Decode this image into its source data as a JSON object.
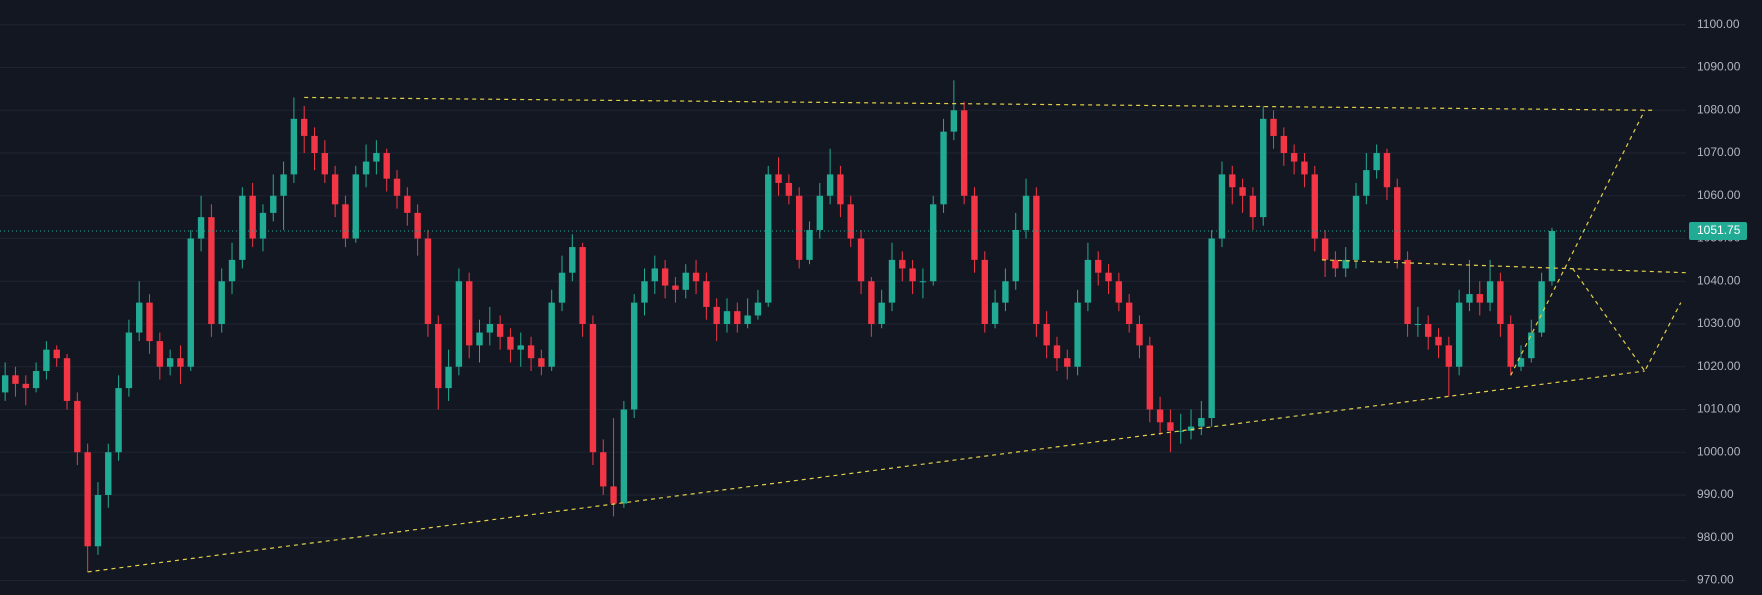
{
  "chart_data": {
    "type": "candlestick",
    "up_color": "#22ab94",
    "down_color": "#f23645",
    "grid": true,
    "grid_color": "#1f2431",
    "xlim": [
      -0.5,
      163
    ],
    "ylim": [
      966.6,
      1105.8
    ],
    "yticks": [
      {
        "value": 970,
        "label": "970.00"
      },
      {
        "value": 980,
        "label": "980.00"
      },
      {
        "value": 990,
        "label": "990.00"
      },
      {
        "value": 1000,
        "label": "1000.00"
      },
      {
        "value": 1010,
        "label": "1010.00"
      },
      {
        "value": 1020,
        "label": "1020.00"
      },
      {
        "value": 1030,
        "label": "1030.00"
      },
      {
        "value": 1040,
        "label": "1040.00"
      },
      {
        "value": 1050,
        "label": "1050.00"
      },
      {
        "value": 1060,
        "label": "1060.00"
      },
      {
        "value": 1070,
        "label": "1070.00"
      },
      {
        "value": 1080,
        "label": "1080.00"
      },
      {
        "value": 1090,
        "label": "1090.00"
      },
      {
        "value": 1100,
        "label": "1100.00"
      }
    ],
    "last_price": {
      "value": 1051.75,
      "label": "1051.75"
    },
    "trend_color": "#e3cf4a",
    "trend_lines": [
      {
        "x": [
          29,
          160
        ],
        "y": [
          1083,
          1080
        ]
      },
      {
        "x": [
          8,
          159
        ],
        "y": [
          972,
          1019
        ]
      },
      {
        "x": [
          127.7,
          163
        ],
        "y": [
          1045,
          1042
        ]
      },
      {
        "x": [
          146,
          159
        ],
        "y": [
          1018,
          1080
        ]
      },
      {
        "x": [
          152,
          159,
          162.5
        ],
        "y": [
          1043,
          1019,
          1035
        ]
      }
    ],
    "candles": [
      [
        1014,
        1021,
        1012,
        1018
      ],
      [
        1018,
        1020,
        1013,
        1016
      ],
      [
        1016,
        1018,
        1011,
        1015
      ],
      [
        1015,
        1021,
        1014,
        1019
      ],
      [
        1019,
        1026,
        1017,
        1024
      ],
      [
        1024,
        1025,
        1020,
        1022
      ],
      [
        1022,
        1023,
        1010,
        1012
      ],
      [
        1012,
        1014,
        997,
        1000
      ],
      [
        1000,
        1002,
        972,
        978
      ],
      [
        978,
        993,
        976,
        990
      ],
      [
        990,
        1002,
        987,
        1000
      ],
      [
        1000,
        1018,
        998,
        1015
      ],
      [
        1015,
        1031,
        1013,
        1028
      ],
      [
        1028,
        1040,
        1026,
        1035
      ],
      [
        1035,
        1037,
        1023,
        1026
      ],
      [
        1026,
        1028,
        1017,
        1020
      ],
      [
        1020,
        1024,
        1018,
        1022
      ],
      [
        1022,
        1025,
        1016,
        1020
      ],
      [
        1020,
        1052,
        1019,
        1050
      ],
      [
        1050,
        1060,
        1047,
        1055
      ],
      [
        1055,
        1058,
        1027,
        1030
      ],
      [
        1030,
        1043,
        1028,
        1040
      ],
      [
        1040,
        1049,
        1037,
        1045
      ],
      [
        1045,
        1062,
        1043,
        1060
      ],
      [
        1060,
        1063,
        1048,
        1050
      ],
      [
        1050,
        1058,
        1047,
        1056
      ],
      [
        1056,
        1065,
        1054,
        1060
      ],
      [
        1060,
        1068,
        1052,
        1065
      ],
      [
        1065,
        1083,
        1063,
        1078
      ],
      [
        1078,
        1081,
        1070,
        1074
      ],
      [
        1074,
        1076,
        1066,
        1070
      ],
      [
        1070,
        1073,
        1063,
        1065
      ],
      [
        1065,
        1067,
        1055,
        1058
      ],
      [
        1058,
        1060,
        1048,
        1050
      ],
      [
        1050,
        1067,
        1049,
        1065
      ],
      [
        1065,
        1072,
        1062,
        1068
      ],
      [
        1068,
        1073,
        1065,
        1070
      ],
      [
        1070,
        1071,
        1061,
        1064
      ],
      [
        1064,
        1066,
        1057,
        1060
      ],
      [
        1060,
        1062,
        1053,
        1056
      ],
      [
        1056,
        1058,
        1046,
        1050
      ],
      [
        1050,
        1052,
        1027,
        1030
      ],
      [
        1030,
        1032,
        1010,
        1015
      ],
      [
        1015,
        1024,
        1012,
        1020
      ],
      [
        1020,
        1043,
        1018,
        1040
      ],
      [
        1040,
        1042,
        1022,
        1025
      ],
      [
        1025,
        1031,
        1021,
        1028
      ],
      [
        1028,
        1034,
        1025,
        1030
      ],
      [
        1030,
        1032,
        1024,
        1027
      ],
      [
        1027,
        1029,
        1021,
        1024
      ],
      [
        1024,
        1028,
        1020,
        1025
      ],
      [
        1025,
        1027,
        1019,
        1022
      ],
      [
        1022,
        1024,
        1018,
        1020
      ],
      [
        1020,
        1038,
        1019,
        1035
      ],
      [
        1035,
        1046,
        1033,
        1042
      ],
      [
        1042,
        1051,
        1040,
        1048
      ],
      [
        1048,
        1049,
        1027,
        1030
      ],
      [
        1030,
        1032,
        997,
        1000
      ],
      [
        1000,
        1003,
        990,
        992
      ],
      [
        992,
        1008,
        985,
        988
      ],
      [
        988,
        1012,
        987,
        1010
      ],
      [
        1010,
        1037,
        1008,
        1035
      ],
      [
        1035,
        1043,
        1032,
        1040
      ],
      [
        1040,
        1046,
        1037,
        1043
      ],
      [
        1043,
        1045,
        1036,
        1039
      ],
      [
        1039,
        1041,
        1035,
        1038
      ],
      [
        1038,
        1044,
        1036,
        1042
      ],
      [
        1042,
        1045,
        1037,
        1040
      ],
      [
        1040,
        1042,
        1031,
        1034
      ],
      [
        1034,
        1036,
        1026,
        1030
      ],
      [
        1030,
        1036,
        1028,
        1033
      ],
      [
        1033,
        1035,
        1028,
        1030
      ],
      [
        1030,
        1036,
        1029,
        1032
      ],
      [
        1032,
        1038,
        1031,
        1035
      ],
      [
        1035,
        1067,
        1034,
        1065
      ],
      [
        1065,
        1069,
        1060,
        1063
      ],
      [
        1063,
        1065,
        1058,
        1060
      ],
      [
        1060,
        1062,
        1043,
        1045
      ],
      [
        1045,
        1054,
        1044,
        1052
      ],
      [
        1052,
        1063,
        1050,
        1060
      ],
      [
        1060,
        1071,
        1058,
        1065
      ],
      [
        1065,
        1067,
        1055,
        1058
      ],
      [
        1058,
        1060,
        1048,
        1050
      ],
      [
        1050,
        1052,
        1037,
        1040
      ],
      [
        1040,
        1041,
        1027,
        1030
      ],
      [
        1030,
        1038,
        1029,
        1035
      ],
      [
        1035,
        1049,
        1033,
        1045
      ],
      [
        1045,
        1047,
        1040,
        1043
      ],
      [
        1043,
        1045,
        1037,
        1040
      ],
      [
        1040,
        1043,
        1036,
        1040
      ],
      [
        1040,
        1060,
        1039,
        1058
      ],
      [
        1058,
        1078,
        1056,
        1075
      ],
      [
        1075,
        1087,
        1073,
        1080
      ],
      [
        1080,
        1082,
        1058,
        1060
      ],
      [
        1060,
        1062,
        1042,
        1045
      ],
      [
        1045,
        1047,
        1028,
        1030
      ],
      [
        1030,
        1038,
        1029,
        1035
      ],
      [
        1035,
        1043,
        1033,
        1040
      ],
      [
        1040,
        1056,
        1038,
        1052
      ],
      [
        1052,
        1064,
        1050,
        1060
      ],
      [
        1060,
        1062,
        1027,
        1030
      ],
      [
        1030,
        1033,
        1022,
        1025
      ],
      [
        1025,
        1027,
        1019,
        1022
      ],
      [
        1022,
        1024,
        1017,
        1020
      ],
      [
        1020,
        1038,
        1018,
        1035
      ],
      [
        1035,
        1049,
        1033,
        1045
      ],
      [
        1045,
        1047,
        1039,
        1042
      ],
      [
        1042,
        1044,
        1037,
        1040
      ],
      [
        1040,
        1042,
        1033,
        1035
      ],
      [
        1035,
        1037,
        1028,
        1030
      ],
      [
        1030,
        1032,
        1022,
        1025
      ],
      [
        1025,
        1027,
        1007,
        1010
      ],
      [
        1010,
        1013,
        1004,
        1007
      ],
      [
        1007,
        1010,
        1000,
        1005
      ],
      [
        1005,
        1009,
        1002,
        1005
      ],
      [
        1005,
        1010,
        1003,
        1006
      ],
      [
        1006,
        1012,
        1004,
        1008
      ],
      [
        1008,
        1052,
        1006,
        1050
      ],
      [
        1050,
        1068,
        1048,
        1065
      ],
      [
        1065,
        1067,
        1058,
        1062
      ],
      [
        1062,
        1064,
        1056,
        1060
      ],
      [
        1060,
        1062,
        1052,
        1055
      ],
      [
        1055,
        1081,
        1053,
        1078
      ],
      [
        1078,
        1080,
        1071,
        1074
      ],
      [
        1074,
        1076,
        1067,
        1070
      ],
      [
        1070,
        1072,
        1065,
        1068
      ],
      [
        1068,
        1070,
        1062,
        1065
      ],
      [
        1065,
        1067,
        1047,
        1050
      ],
      [
        1050,
        1052,
        1041,
        1045
      ],
      [
        1045,
        1047,
        1041,
        1043
      ],
      [
        1043,
        1048,
        1041,
        1045
      ],
      [
        1045,
        1063,
        1043,
        1060
      ],
      [
        1060,
        1070,
        1058,
        1066
      ],
      [
        1066,
        1072,
        1064,
        1070
      ],
      [
        1070,
        1071,
        1059,
        1062
      ],
      [
        1062,
        1064,
        1043,
        1045
      ],
      [
        1045,
        1047,
        1027,
        1030
      ],
      [
        1030,
        1034,
        1027,
        1030
      ],
      [
        1030,
        1032,
        1024,
        1027
      ],
      [
        1027,
        1029,
        1022,
        1025
      ],
      [
        1025,
        1027,
        1013,
        1020
      ],
      [
        1020,
        1038,
        1018,
        1035
      ],
      [
        1035,
        1045,
        1033,
        1037
      ],
      [
        1037,
        1040,
        1032,
        1035
      ],
      [
        1035,
        1045,
        1033,
        1040
      ],
      [
        1040,
        1042,
        1027,
        1030
      ],
      [
        1030,
        1032,
        1018,
        1020
      ],
      [
        1020,
        1025,
        1019,
        1022
      ],
      [
        1022,
        1031,
        1021,
        1028
      ],
      [
        1028,
        1042,
        1027,
        1040
      ],
      [
        1040,
        1052.5,
        1039,
        1051.75
      ]
    ]
  }
}
